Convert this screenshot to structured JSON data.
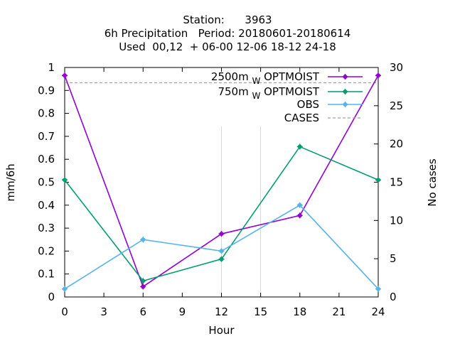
{
  "chart_data": {
    "type": "line",
    "title_lines": [
      "Station:      3963",
      "6h Precipitation   Period: 20180601-20180614",
      "Used  00,12  + 06-00 12-06 18-12 24-18"
    ],
    "xlabel": "Hour",
    "ylabel": "mm/6h",
    "y2label": "No cases",
    "xlim": [
      0,
      24
    ],
    "ylim": [
      0,
      1
    ],
    "y2lim": [
      0,
      30
    ],
    "xticks": [
      "0",
      "3",
      "6",
      "9",
      "12",
      "15",
      "18",
      "21",
      "24"
    ],
    "yticks": [
      "0",
      "0.1",
      "0.2",
      "0.3",
      "0.4",
      "0.5",
      "0.6",
      "0.7",
      "0.8",
      "0.9",
      "1"
    ],
    "y2ticks": [
      "0",
      "5",
      "10",
      "15",
      "20",
      "25",
      "30"
    ],
    "legend_position": "top-right",
    "series": [
      {
        "name_main": "2500m",
        "name_sub": "W",
        "name_rest": "OPTMOIST",
        "color": "#9400d3",
        "x": [
          0,
          6,
          12,
          18,
          24
        ],
        "values": [
          0.965,
          0.045,
          0.275,
          0.355,
          0.965
        ]
      },
      {
        "name_main": "750m",
        "name_sub": "W",
        "name_rest": "OPTMOIST",
        "color": "#009e73",
        "x": [
          0,
          6,
          12,
          18,
          24
        ],
        "values": [
          0.51,
          0.07,
          0.165,
          0.655,
          0.51
        ]
      },
      {
        "name_main": "OBS",
        "name_sub": "",
        "name_rest": "",
        "color": "#56b4e9",
        "x": [
          0,
          6,
          12,
          18,
          24
        ],
        "values": [
          0.035,
          0.25,
          0.2,
          0.4,
          0.035
        ]
      }
    ],
    "cases": {
      "name": "CASES",
      "color": "#a0a0a0",
      "value": 28
    }
  }
}
